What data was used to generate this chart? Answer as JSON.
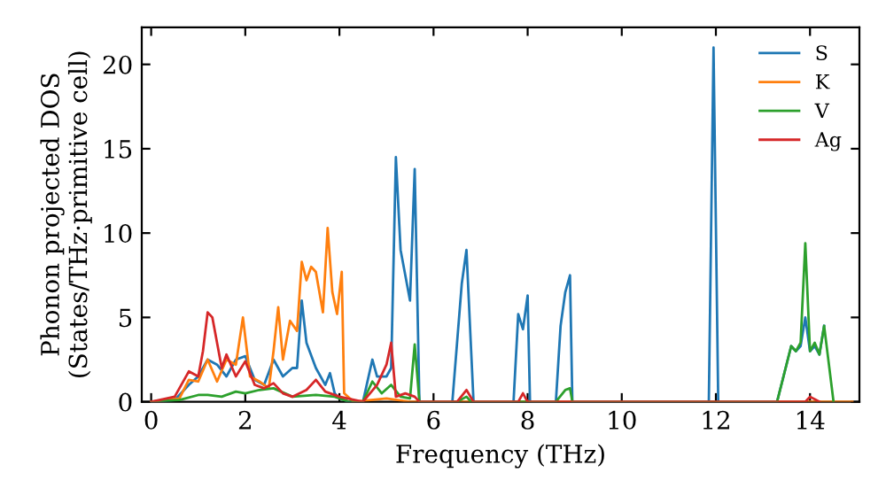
{
  "chart_data": {
    "type": "line",
    "xlabel": "Frequency (THz)",
    "ylabel": "Phonon projected DOS\n(States/THz·primitive cell)",
    "xlim": [
      -0.2,
      15.05
    ],
    "ylim": [
      0,
      22.2
    ],
    "xticks": [
      0,
      2,
      4,
      6,
      8,
      10,
      12,
      14
    ],
    "yticks": [
      0,
      5,
      10,
      15,
      20
    ],
    "grid": false,
    "legend": "top right",
    "marker": "none",
    "line_style": "solid",
    "series": [
      {
        "name": "S",
        "color": "#1f77b4",
        "x": [
          0,
          0.5,
          0.8,
          1.0,
          1.2,
          1.4,
          1.6,
          1.8,
          2.0,
          2.2,
          2.4,
          2.6,
          2.8,
          3.0,
          3.1,
          3.2,
          3.3,
          3.5,
          3.7,
          3.8,
          3.9,
          4.0,
          4.2,
          4.5,
          4.7,
          4.8,
          5.0,
          5.1,
          5.2,
          5.3,
          5.5,
          5.6,
          5.7,
          6.4,
          6.6,
          6.7,
          6.8,
          6.85,
          7.7,
          7.8,
          7.9,
          8.0,
          8.05,
          8.6,
          8.7,
          8.8,
          8.9,
          8.95,
          11.85,
          11.95,
          12.05,
          13.3,
          13.6,
          13.7,
          13.8,
          13.9,
          14.0,
          14.1,
          14.2,
          14.3
        ],
        "values": [
          0,
          0.1,
          1,
          1.5,
          2.5,
          2.2,
          1.5,
          2.5,
          2.7,
          1.3,
          1.0,
          2.5,
          1.5,
          2,
          2,
          6,
          3.5,
          2,
          1.0,
          1.7,
          0.5,
          0.2,
          0,
          0,
          2.5,
          1.5,
          1.5,
          2,
          14.5,
          9,
          6,
          13.8,
          0,
          0,
          7,
          9,
          3,
          0,
          0,
          5.2,
          4.3,
          6.3,
          0,
          0,
          4.5,
          6.5,
          7.5,
          0,
          0,
          21,
          0,
          0,
          3.3,
          3,
          3.3,
          5,
          3,
          3.3,
          2.8,
          4.5
        ]
      },
      {
        "name": "K",
        "color": "#ff7f0e",
        "x": [
          0,
          0.6,
          0.8,
          1.0,
          1.2,
          1.4,
          1.6,
          1.8,
          1.95,
          2.1,
          2.3,
          2.5,
          2.6,
          2.7,
          2.8,
          2.95,
          3.1,
          3.2,
          3.3,
          3.4,
          3.5,
          3.65,
          3.75,
          3.85,
          3.95,
          4.05,
          4.1,
          4.3,
          5.0,
          5.5,
          14.9
        ],
        "values": [
          0,
          0.2,
          1.3,
          1.2,
          2.5,
          1.2,
          2.5,
          2.2,
          5,
          1.5,
          1.2,
          0.8,
          3,
          5.6,
          2.5,
          4.8,
          4.2,
          8.3,
          7.2,
          8,
          7.7,
          5.3,
          10.3,
          6.5,
          5.2,
          7.7,
          0.5,
          0,
          0.2,
          0,
          0
        ]
      },
      {
        "name": "V",
        "color": "#2ca02c",
        "x": [
          0,
          0.6,
          1.0,
          1.2,
          1.5,
          1.8,
          2.0,
          2.3,
          2.6,
          3.0,
          3.5,
          3.9,
          4.2,
          4.5,
          4.7,
          4.9,
          5.1,
          5.3,
          5.5,
          5.6,
          5.7,
          6.5,
          6.7,
          6.8,
          8.6,
          8.8,
          8.9,
          8.95,
          13.3,
          13.6,
          13.7,
          13.8,
          13.9,
          14.0,
          14.1,
          14.2,
          14.3,
          14.5
        ],
        "values": [
          0,
          0.1,
          0.4,
          0.4,
          0.3,
          0.6,
          0.5,
          0.7,
          0.8,
          0.3,
          0.4,
          0.3,
          0,
          0,
          1.2,
          0.5,
          1.0,
          0.3,
          0.2,
          3.4,
          0,
          0,
          0.3,
          0,
          0,
          0.7,
          0.8,
          0,
          0,
          3.3,
          3,
          3.5,
          9.4,
          3,
          3.5,
          2.8,
          4.5,
          0
        ]
      },
      {
        "name": "Ag",
        "color": "#d62728",
        "x": [
          0,
          0.5,
          0.8,
          1.0,
          1.1,
          1.2,
          1.3,
          1.4,
          1.5,
          1.6,
          1.8,
          2.0,
          2.2,
          2.4,
          2.6,
          2.8,
          3.0,
          3.3,
          3.5,
          3.7,
          4.0,
          4.5,
          4.8,
          5.0,
          5.1,
          5.2,
          5.4,
          5.6,
          5.7,
          6.5,
          6.7,
          6.85,
          7.8,
          7.9,
          8.0,
          13.9,
          14.0,
          14.2
        ],
        "values": [
          0,
          0.3,
          1.8,
          1.5,
          3.0,
          5.3,
          5.0,
          3.5,
          2.0,
          2.8,
          1.5,
          2.4,
          1.0,
          0.8,
          1.1,
          0.5,
          0.3,
          0.7,
          1.3,
          0.6,
          0.3,
          0,
          1.0,
          2.2,
          3.5,
          0.3,
          0.5,
          0.3,
          0,
          0,
          0.7,
          0,
          0,
          0.5,
          0,
          0,
          0.3,
          0
        ]
      }
    ]
  }
}
